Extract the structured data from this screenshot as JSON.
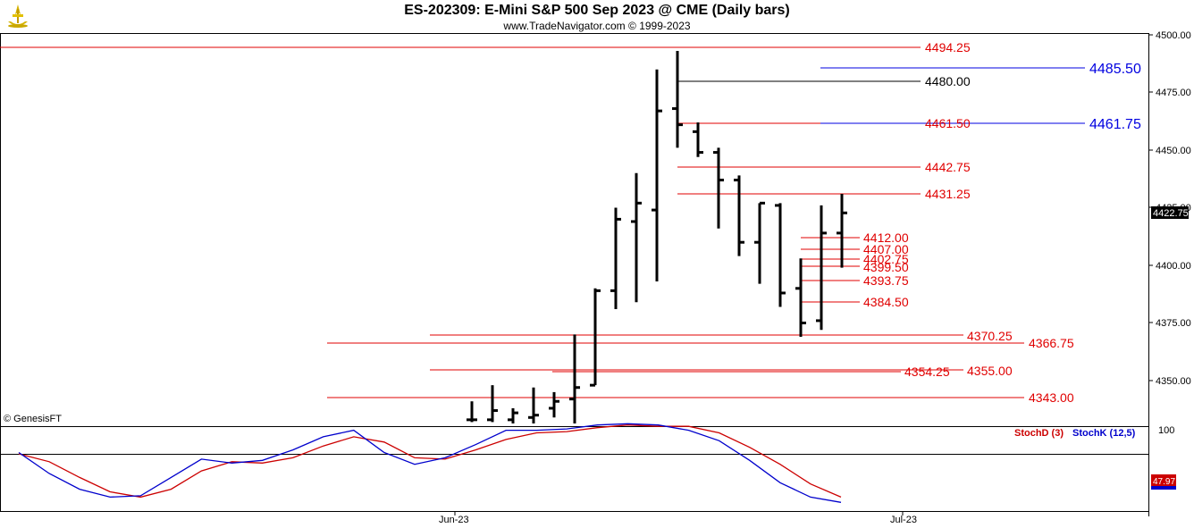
{
  "header": {
    "title": "ES-202309:  E-Mini S&P 500 Sep 2023 @ CME  (Daily bars)",
    "subtitle": "www.TradeNavigator.com © 1999-2023",
    "logo_icon": "trade-navigator-logo-icon"
  },
  "watermark": "© GenesisFT",
  "colors": {
    "bars": "#000000",
    "support_resistance": "#e00000",
    "blue_level": "#0000e0",
    "stoch_d": "#cc0000",
    "stoch_k": "#0000cc",
    "last_price_bg": "#000000"
  },
  "chart_data": [
    {
      "type": "ohlc",
      "title": "ES-202309:  E-Mini S&P 500 Sep 2023 @ CME  (Daily bars)",
      "y_ticks": [
        "4500.00",
        "4475.00",
        "4450.00",
        "4425.00",
        "4400.00",
        "4375.00",
        "4350.00"
      ],
      "ylim": [
        4328,
        4502
      ],
      "x_ticks": [
        "Jun-23",
        "Jul-23"
      ],
      "last_price": "4422.75",
      "bars": [
        {
          "o": 4333,
          "h": 4341,
          "l": 4332,
          "c": 4333
        },
        {
          "o": 4333,
          "h": 4348,
          "l": 4332,
          "c": 4337
        },
        {
          "o": 4333,
          "h": 4338,
          "l": 4330,
          "c": 4336
        },
        {
          "o": 4334,
          "h": 4347,
          "l": 4330,
          "c": 4335
        },
        {
          "o": 4338,
          "h": 4345,
          "l": 4334,
          "c": 4341
        },
        {
          "o": 4342,
          "h": 4370,
          "l": 4330,
          "c": 4347
        },
        {
          "o": 4348,
          "h": 4390,
          "l": 4348,
          "c": 4389
        },
        {
          "o": 4389,
          "h": 4425,
          "l": 4381,
          "c": 4420
        },
        {
          "o": 4419,
          "h": 4440,
          "l": 4384,
          "c": 4427
        },
        {
          "o": 4424,
          "h": 4485,
          "l": 4393,
          "c": 4467
        },
        {
          "o": 4468,
          "h": 4493,
          "l": 4451,
          "c": 4461
        },
        {
          "o": 4458,
          "h": 4462,
          "l": 4447,
          "c": 4449
        },
        {
          "o": 4449,
          "h": 4451,
          "l": 4416,
          "c": 4437
        },
        {
          "o": 4437,
          "h": 4439,
          "l": 4404,
          "c": 4410
        },
        {
          "o": 4410,
          "h": 4427,
          "l": 4392,
          "c": 4427
        },
        {
          "o": 4426,
          "h": 4427,
          "l": 4382,
          "c": 4388
        },
        {
          "o": 4390,
          "h": 4403,
          "l": 4369,
          "c": 4375
        },
        {
          "o": 4376,
          "h": 4426,
          "l": 4372,
          "c": 4414
        },
        {
          "o": 4414,
          "h": 4431,
          "l": 4399,
          "c": 4422.75
        }
      ],
      "levels_red": [
        "4494.25",
        "4480.00",
        "4461.50",
        "4442.75",
        "4431.25",
        "4412.00",
        "4407.00",
        "4402.75",
        "4399.50",
        "4393.75",
        "4384.50",
        "4370.25",
        "4366.75",
        "4355.00",
        "4354.25",
        "4343.00"
      ],
      "levels_blue": [
        "4485.50",
        "4461.75"
      ]
    },
    {
      "type": "line",
      "y_label": "100",
      "value_label": "47.97",
      "series": [
        {
          "name": "StochD (3)",
          "values": [
            85,
            79,
            67,
            56,
            52,
            58,
            72,
            79,
            78,
            82,
            91,
            98,
            94,
            82,
            81,
            88,
            96,
            101,
            102,
            105,
            107,
            106,
            106,
            101,
            90,
            77,
            62,
            52
          ]
        },
        {
          "name": "StochK (12,5)",
          "values": [
            86,
            70,
            58,
            52,
            53,
            67,
            81,
            78,
            80,
            88,
            98,
            103,
            86,
            77,
            82,
            92,
            103,
            103,
            104,
            107,
            108,
            107,
            103,
            95,
            80,
            63,
            52,
            48
          ]
        }
      ]
    }
  ]
}
